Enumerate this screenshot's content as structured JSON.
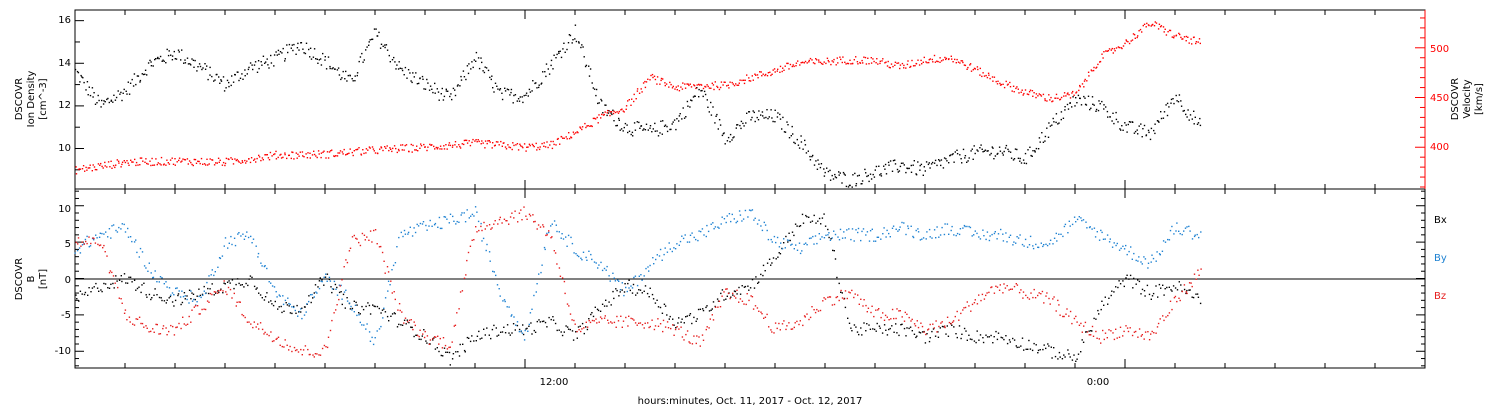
{
  "chart_data": [
    {
      "type": "scatter",
      "panel": "top",
      "ylabel": [
        "DSCOVR",
        "Ion Density",
        "[cm^-3]"
      ],
      "y2label": [
        "DSCOVR",
        "Velocity",
        "[km/s]"
      ],
      "ylim": [
        8.1,
        16.5
      ],
      "y2lim": [
        358,
        538
      ],
      "yticks": [
        "10",
        "12",
        "14",
        "16"
      ],
      "y2ticks": [
        "400",
        "450",
        "500"
      ],
      "x_start": "2017-10-11 03:00",
      "x_end": "2017-10-12 06:00",
      "series": [
        {
          "label": "density",
          "color": "#000000",
          "axis": "left",
          "x": [
            "03:00",
            "03:30",
            "04:00",
            "04:30",
            "05:00",
            "05:30",
            "06:00",
            "06:30",
            "07:00",
            "07:30",
            "08:00",
            "08:30",
            "09:00",
            "09:30",
            "10:00",
            "10:30",
            "11:00",
            "11:30",
            "12:00",
            "12:30",
            "13:00",
            "13:30",
            "14:00",
            "14:30",
            "15:00",
            "15:30",
            "16:00",
            "16:30",
            "17:00",
            "17:30",
            "18:00",
            "18:30",
            "19:00",
            "19:30",
            "20:00",
            "20:30",
            "21:00",
            "21:30",
            "22:00",
            "22:30",
            "23:00",
            "23:30",
            "00:00",
            "00:30",
            "01:00",
            "01:30"
          ],
          "values": [
            13.6,
            12.0,
            12.7,
            14.0,
            14.5,
            13.8,
            13.0,
            13.8,
            14.2,
            14.9,
            14.1,
            13.1,
            15.4,
            13.7,
            13.0,
            12.3,
            14.3,
            12.5,
            12.5,
            13.9,
            15.5,
            12.0,
            11.0,
            10.8,
            11.2,
            12.8,
            10.5,
            11.5,
            11.5,
            10.3,
            8.8,
            8.5,
            8.9,
            9.2,
            9.0,
            9.5,
            9.8,
            9.9,
            9.5,
            11.0,
            12.3,
            12.0,
            11.0,
            10.7,
            12.5,
            11.0
          ]
        },
        {
          "label": "velocity",
          "color": "#ff0000",
          "axis": "right",
          "x": [
            "03:00",
            "04:00",
            "05:00",
            "06:00",
            "07:00",
            "08:00",
            "09:00",
            "10:00",
            "11:00",
            "12:00",
            "12:30",
            "13:00",
            "13:30",
            "14:00",
            "14:30",
            "15:00",
            "15:30",
            "16:00",
            "16:30",
            "17:00",
            "17:30",
            "18:00",
            "18:30",
            "19:00",
            "19:30",
            "20:00",
            "20:30",
            "21:00",
            "21:30",
            "22:00",
            "22:30",
            "23:00",
            "23:30",
            "00:00",
            "00:30",
            "01:00",
            "01:30"
          ],
          "values": [
            377,
            385,
            386,
            385,
            392,
            393,
            397,
            400,
            404,
            400,
            402,
            415,
            430,
            440,
            470,
            460,
            462,
            462,
            470,
            477,
            485,
            486,
            488,
            487,
            481,
            488,
            490,
            478,
            465,
            455,
            449,
            453,
            490,
            505,
            525,
            512,
            505
          ]
        }
      ]
    },
    {
      "type": "scatter",
      "panel": "bottom",
      "ylabel": [
        "DSCOVR",
        "B",
        "[nT]"
      ],
      "ylim": [
        -12.3,
        12.3
      ],
      "yticks": [
        "-10",
        "-5",
        "0",
        "5",
        "10"
      ],
      "xticks": [
        "12:00",
        "0:00"
      ],
      "xlabel": "hours:minutes, Oct. 11, 2017 - Oct. 12, 2017",
      "legend": [
        "Bx",
        "By",
        "Bz"
      ],
      "series": [
        {
          "label": "Bx",
          "color": "#000000",
          "x": [
            "03:00",
            "03:30",
            "04:00",
            "04:30",
            "05:00",
            "05:30",
            "06:00",
            "06:30",
            "07:00",
            "07:30",
            "08:00",
            "08:30",
            "09:00",
            "09:30",
            "10:00",
            "10:30",
            "11:00",
            "11:30",
            "12:00",
            "12:30",
            "13:00",
            "13:30",
            "14:00",
            "14:30",
            "15:00",
            "15:30",
            "16:00",
            "16:30",
            "17:00",
            "17:30",
            "18:00",
            "18:30",
            "19:00",
            "19:30",
            "20:00",
            "20:30",
            "21:00",
            "21:30",
            "22:00",
            "22:30",
            "23:00",
            "23:30",
            "00:00",
            "00:30",
            "01:00",
            "01:30"
          ],
          "values": [
            -3,
            -1,
            0,
            -2,
            -3,
            -2,
            -1,
            0,
            -4,
            -4,
            0,
            -4,
            -4,
            -6,
            -8,
            -11,
            -8,
            -7,
            -7,
            -6,
            -8,
            -4,
            -1,
            -2,
            -6,
            -5,
            -2,
            -1,
            3,
            8,
            8,
            -7,
            -7,
            -7,
            -8,
            -7,
            -8,
            -8,
            -9,
            -10,
            -11,
            -4,
            0,
            -2,
            -1,
            -3
          ]
        },
        {
          "label": "By",
          "color": "#1e82d2",
          "x": [
            "03:00",
            "03:30",
            "04:00",
            "04:30",
            "05:00",
            "05:30",
            "06:00",
            "06:30",
            "07:00",
            "07:30",
            "08:00",
            "08:30",
            "09:00",
            "09:30",
            "10:00",
            "10:30",
            "11:00",
            "11:30",
            "12:00",
            "12:30",
            "13:00",
            "13:30",
            "14:00",
            "14:30",
            "15:00",
            "15:30",
            "16:00",
            "16:30",
            "17:00",
            "17:30",
            "18:00",
            "18:30",
            "19:00",
            "19:30",
            "20:00",
            "20:30",
            "21:00",
            "21:30",
            "22:00",
            "22:30",
            "23:00",
            "23:30",
            "00:00",
            "00:30",
            "01:00",
            "01:30"
          ],
          "values": [
            4,
            6,
            7,
            1,
            -2,
            -3,
            5,
            6,
            -2,
            -5,
            0,
            -3,
            -9,
            6,
            7,
            8,
            9,
            -2,
            -8,
            8,
            4,
            2,
            -2,
            2,
            5,
            6,
            8,
            9,
            5,
            4,
            6,
            6,
            6,
            7,
            6,
            7,
            6,
            6,
            5,
            5,
            8,
            6,
            4,
            2,
            7,
            6
          ]
        },
        {
          "label": "Bz",
          "color": "#e61e1e",
          "x": [
            "03:00",
            "03:30",
            "04:00",
            "04:30",
            "05:00",
            "05:30",
            "06:00",
            "06:30",
            "07:00",
            "07:30",
            "08:00",
            "08:30",
            "09:00",
            "09:30",
            "10:00",
            "10:30",
            "11:00",
            "11:30",
            "12:00",
            "12:30",
            "13:00",
            "13:30",
            "14:00",
            "14:30",
            "15:00",
            "15:30",
            "16:00",
            "16:30",
            "17:00",
            "17:30",
            "18:00",
            "18:30",
            "19:00",
            "19:30",
            "20:00",
            "20:30",
            "21:00",
            "21:30",
            "22:00",
            "22:30",
            "23:00",
            "23:30",
            "00:00",
            "00:30",
            "01:00",
            "01:30"
          ],
          "values": [
            5,
            5,
            -5,
            -7,
            -7,
            -4,
            -1,
            -6,
            -8,
            -10,
            -10,
            5,
            6,
            -5,
            -8,
            -9,
            7,
            8,
            9,
            6,
            -7,
            -6,
            -6,
            -6,
            -7,
            -9,
            -2,
            -3,
            -7,
            -6,
            -3,
            -2,
            -5,
            -5,
            -7,
            -6,
            -3,
            -1,
            -2,
            -3,
            -6,
            -8,
            -7,
            -8,
            -3,
            1
          ]
        }
      ]
    }
  ]
}
